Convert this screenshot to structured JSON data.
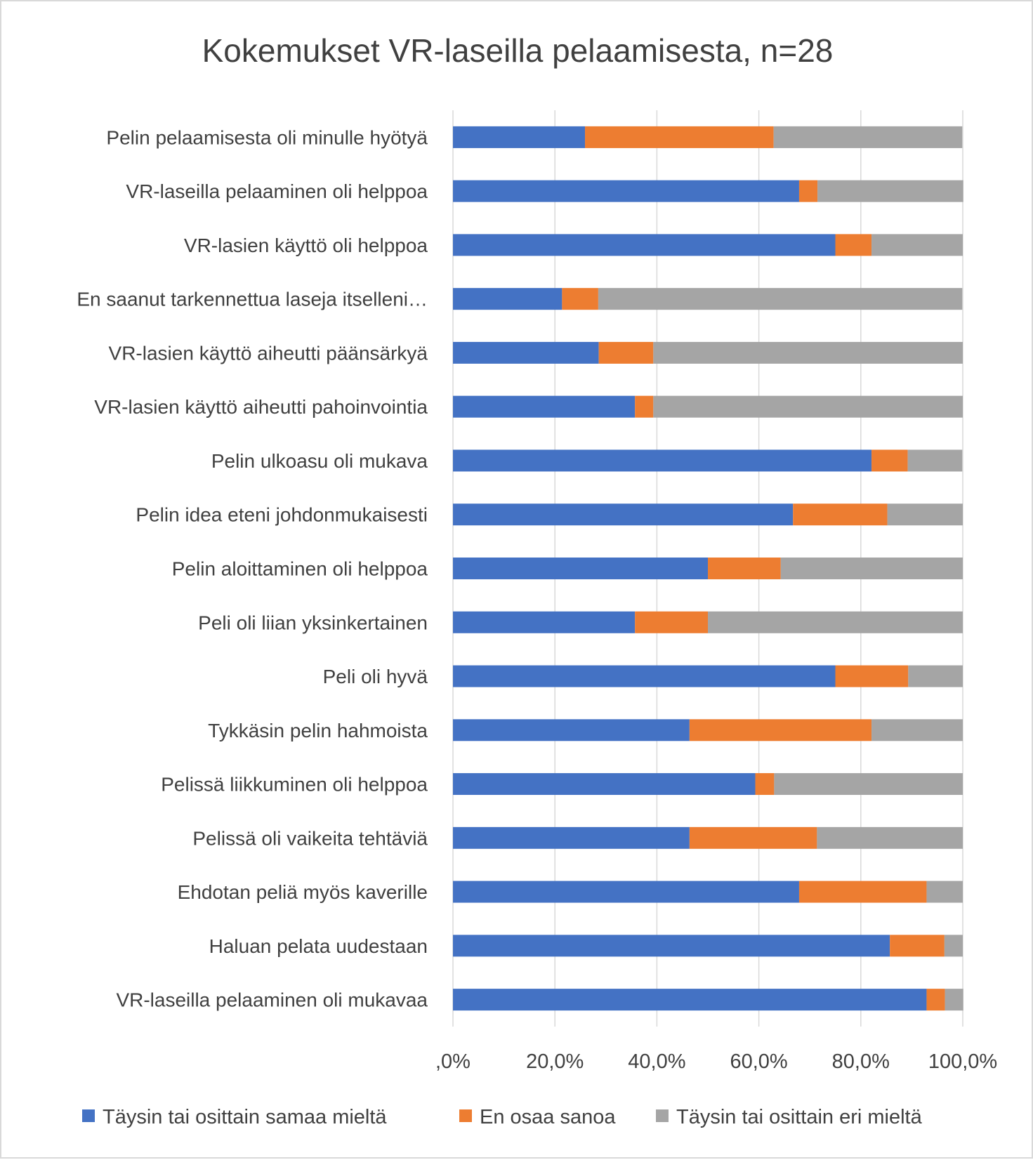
{
  "chart_data": {
    "type": "bar",
    "orientation": "horizontal",
    "stacked": "percent",
    "title": "Kokemukset VR-laseilla pelaamisesta, n=28",
    "categories": [
      "Pelin pelaamisesta oli minulle hyötyä",
      "VR-laseilla pelaaminen oli helppoa",
      "VR-lasien käyttö oli helppoa",
      "En saanut tarkennettua laseja itselleni…",
      "VR-lasien käyttö aiheutti päänsärkyä",
      "VR-lasien käyttö aiheutti pahoinvointia",
      "Pelin ulkoasu oli mukava",
      "Pelin idea eteni johdonmukaisesti",
      "Pelin aloittaminen oli helppoa",
      "Peli oli liian yksinkertainen",
      "Peli oli hyvä",
      "Tykkäsin pelin hahmoista",
      "Pelissä liikkuminen oli helppoa",
      "Pelissä oli vaikeita tehtäviä",
      "Ehdotan peliä myös kaverille",
      "Haluan pelata uudestaan",
      "VR-laseilla pelaaminen oli mukavaa"
    ],
    "series": [
      {
        "name": "Täysin tai osittain samaa mieltä",
        "color": "#4472C4",
        "values": [
          25.9,
          67.9,
          75.0,
          21.4,
          28.6,
          35.7,
          82.1,
          66.7,
          50.0,
          35.7,
          75.0,
          46.4,
          59.3,
          46.4,
          67.9,
          85.7,
          92.9
        ]
      },
      {
        "name": "En osaa sanoa",
        "color": "#ED7D31",
        "values": [
          37.0,
          3.6,
          7.1,
          7.1,
          10.7,
          3.6,
          7.1,
          18.5,
          14.3,
          14.3,
          14.3,
          35.7,
          3.7,
          25.0,
          25.0,
          10.7,
          3.6
        ]
      },
      {
        "name": "Täysin tai osittain eri mieltä",
        "color": "#A5A5A5",
        "values": [
          37.0,
          28.6,
          17.9,
          71.4,
          60.7,
          60.7,
          10.7,
          14.8,
          35.7,
          50.0,
          10.7,
          17.9,
          37.0,
          28.6,
          7.1,
          3.6,
          3.6
        ]
      }
    ],
    "xlim": [
      0,
      100
    ],
    "xticks": [
      0,
      20,
      40,
      60,
      80,
      100
    ],
    "xtick_labels": [
      ",0%",
      "20,0%",
      "40,0%",
      "60,0%",
      "80,0%",
      "100,0%"
    ],
    "grid": "vertical",
    "legend": "bottom"
  }
}
